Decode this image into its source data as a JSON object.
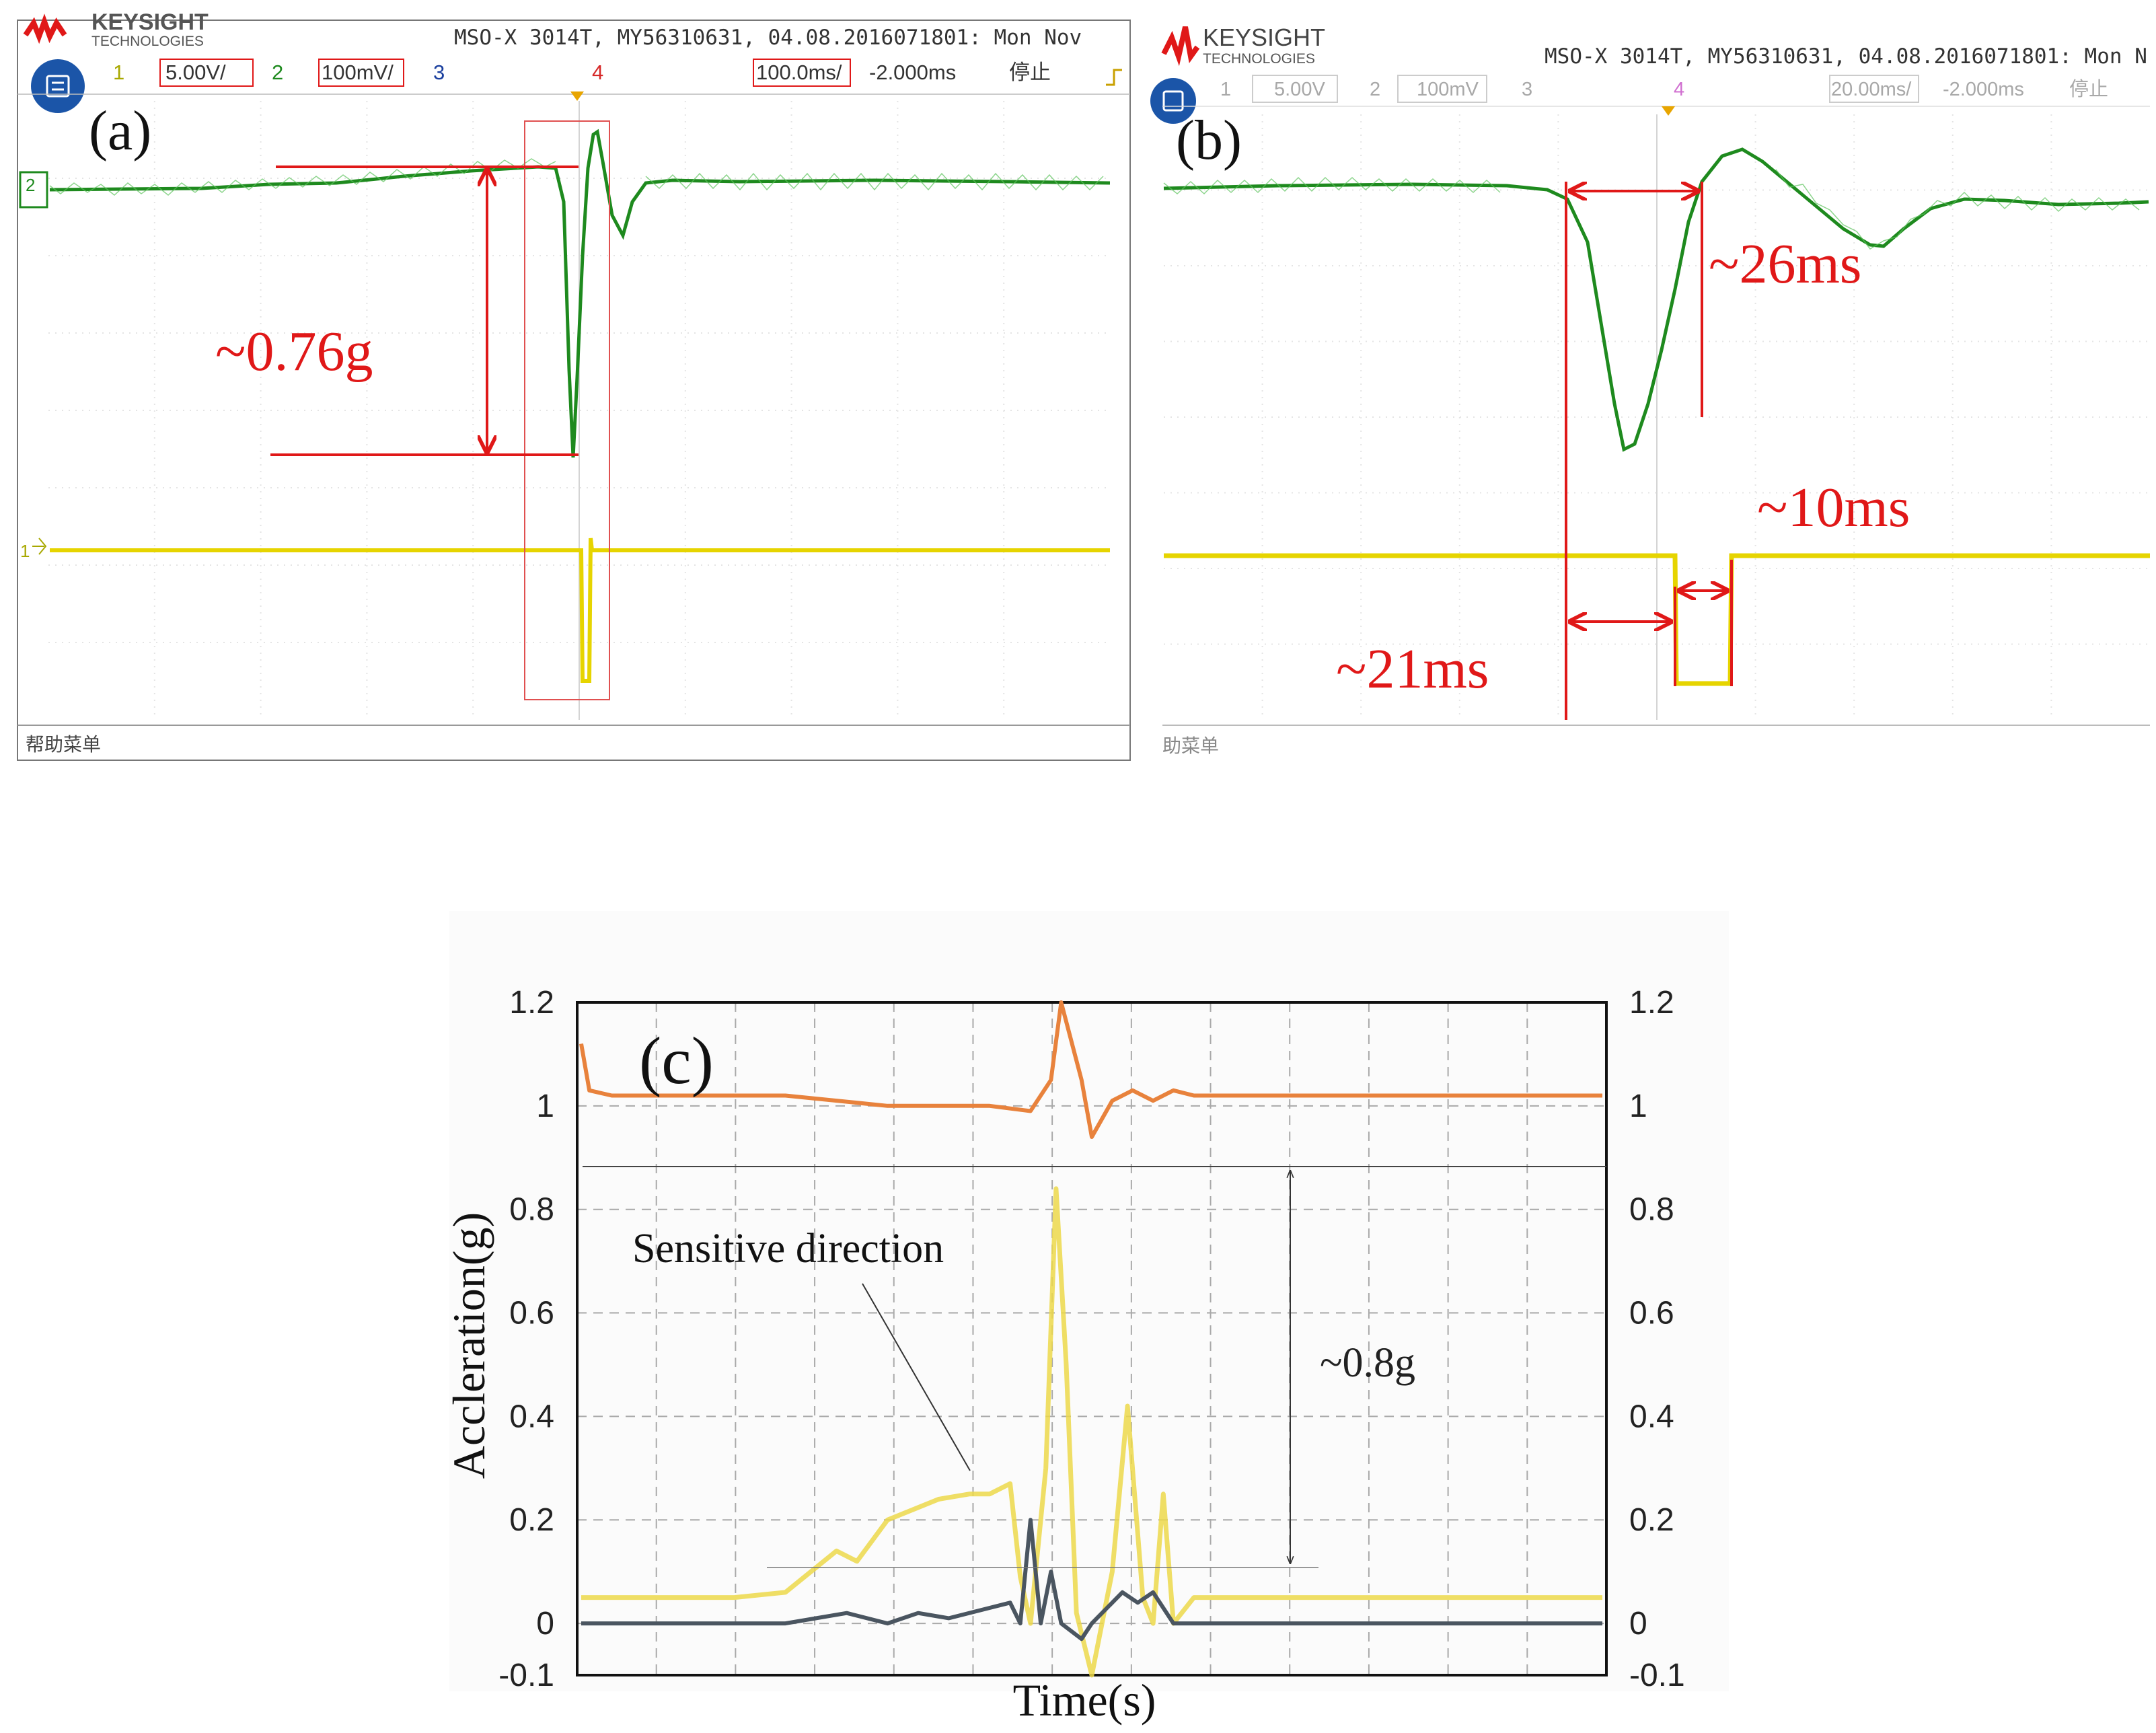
{
  "panels": {
    "a": {
      "panel_label": "(a)",
      "brand": "KEYSIGHT",
      "brand_sub": "TECHNOLOGIES",
      "instrument_info": "MSO-X 3014T, MY56310631, 04.08.2016071801: Mon Nov",
      "channels": [
        {
          "num": "1",
          "scale": "5.00V/",
          "color": "#a8a800"
        },
        {
          "num": "2",
          "scale": "100mV/",
          "color": "#1e8a1e"
        },
        {
          "num": "3",
          "scale": "",
          "color": "#1a3f9e"
        },
        {
          "num": "4",
          "scale": "",
          "color": "#d62828"
        }
      ],
      "timebase": "100.0ms/",
      "delay": "-2.000ms",
      "run_state": "停止",
      "footer": "帮助菜单",
      "annotation": "~0.76g",
      "ch2_marker": "2",
      "ch1_marker": "1"
    },
    "b": {
      "panel_label": "(b)",
      "brand": "KEYSIGHT",
      "brand_sub": "TECHNOLOGIES",
      "instrument_info": "MSO-X 3014T, MY56310631, 04.08.2016071801: Mon N",
      "channels": [
        {
          "num": "1",
          "scale": "5.00V",
          "color": "#a8a8a8"
        },
        {
          "num": "2",
          "scale": "100mV",
          "color": "#a8a8a8"
        },
        {
          "num": "3",
          "scale": "",
          "color": "#a8a8a8"
        },
        {
          "num": "4",
          "scale": "",
          "color": "#d06fd0"
        }
      ],
      "timebase": "20.00ms/",
      "delay": "-2.000ms",
      "run_state": "停止",
      "footer": "助菜单",
      "annotations": {
        "a26": "~26ms",
        "a10": "~10ms",
        "a21": "~21ms"
      }
    }
  },
  "chart_data": {
    "type": "line",
    "panel_label": "(c)",
    "xlabel": "Time(s)",
    "ylabel": "Accleration(g)",
    "ylim": [
      -0.1,
      1.2
    ],
    "yticks": [
      "1.2",
      "1",
      "0.8",
      "0.6",
      "0.4",
      "0.2",
      "0",
      "-0.1"
    ],
    "ytick_values": [
      1.2,
      1.0,
      0.8,
      0.6,
      0.4,
      0.2,
      0.0,
      -0.1
    ],
    "grid": true,
    "annotation_sensitive": "Sensitive direction",
    "annotation_span": "~0.8g",
    "colors": {
      "orange": "#e8823c",
      "yellow": "#ecd84a",
      "gray": "#4a5560"
    },
    "series": [
      {
        "color_key": "orange",
        "points": [
          [
            0.0,
            1.12
          ],
          [
            0.008,
            1.03
          ],
          [
            0.03,
            1.02
          ],
          [
            0.1,
            1.02
          ],
          [
            0.2,
            1.02
          ],
          [
            0.3,
            1.0
          ],
          [
            0.4,
            1.0
          ],
          [
            0.44,
            0.99
          ],
          [
            0.46,
            1.05
          ],
          [
            0.47,
            1.2
          ],
          [
            0.49,
            1.05
          ],
          [
            0.5,
            0.94
          ],
          [
            0.52,
            1.01
          ],
          [
            0.54,
            1.03
          ],
          [
            0.56,
            1.01
          ],
          [
            0.58,
            1.03
          ],
          [
            0.6,
            1.02
          ],
          [
            0.7,
            1.02
          ],
          [
            0.8,
            1.02
          ],
          [
            0.9,
            1.02
          ],
          [
            1.0,
            1.02
          ]
        ]
      },
      {
        "color_key": "yellow",
        "points": [
          [
            0.0,
            0.05
          ],
          [
            0.15,
            0.05
          ],
          [
            0.2,
            0.06
          ],
          [
            0.25,
            0.14
          ],
          [
            0.27,
            0.12
          ],
          [
            0.3,
            0.2
          ],
          [
            0.35,
            0.24
          ],
          [
            0.38,
            0.25
          ],
          [
            0.4,
            0.25
          ],
          [
            0.42,
            0.27
          ],
          [
            0.43,
            0.09
          ],
          [
            0.44,
            0.0
          ],
          [
            0.455,
            0.3
          ],
          [
            0.465,
            0.84
          ],
          [
            0.475,
            0.5
          ],
          [
            0.485,
            0.02
          ],
          [
            0.5,
            -0.1
          ],
          [
            0.51,
            0.0
          ],
          [
            0.52,
            0.1
          ],
          [
            0.535,
            0.42
          ],
          [
            0.55,
            0.05
          ],
          [
            0.56,
            0.0
          ],
          [
            0.57,
            0.25
          ],
          [
            0.58,
            0.0
          ],
          [
            0.6,
            0.05
          ],
          [
            0.7,
            0.05
          ],
          [
            0.8,
            0.05
          ],
          [
            0.9,
            0.05
          ],
          [
            1.0,
            0.05
          ]
        ]
      },
      {
        "color_key": "gray",
        "points": [
          [
            0.0,
            0.0
          ],
          [
            0.2,
            0.0
          ],
          [
            0.26,
            0.02
          ],
          [
            0.3,
            0.0
          ],
          [
            0.33,
            0.02
          ],
          [
            0.36,
            0.01
          ],
          [
            0.4,
            0.03
          ],
          [
            0.42,
            0.04
          ],
          [
            0.43,
            0.0
          ],
          [
            0.44,
            0.2
          ],
          [
            0.45,
            0.0
          ],
          [
            0.46,
            0.1
          ],
          [
            0.47,
            0.0
          ],
          [
            0.49,
            -0.03
          ],
          [
            0.5,
            0.0
          ],
          [
            0.53,
            0.06
          ],
          [
            0.545,
            0.04
          ],
          [
            0.56,
            0.06
          ],
          [
            0.58,
            0.0
          ],
          [
            0.6,
            0.0
          ],
          [
            0.7,
            0.0
          ],
          [
            0.8,
            0.0
          ],
          [
            0.9,
            0.0
          ],
          [
            1.0,
            0.0
          ]
        ]
      }
    ]
  }
}
